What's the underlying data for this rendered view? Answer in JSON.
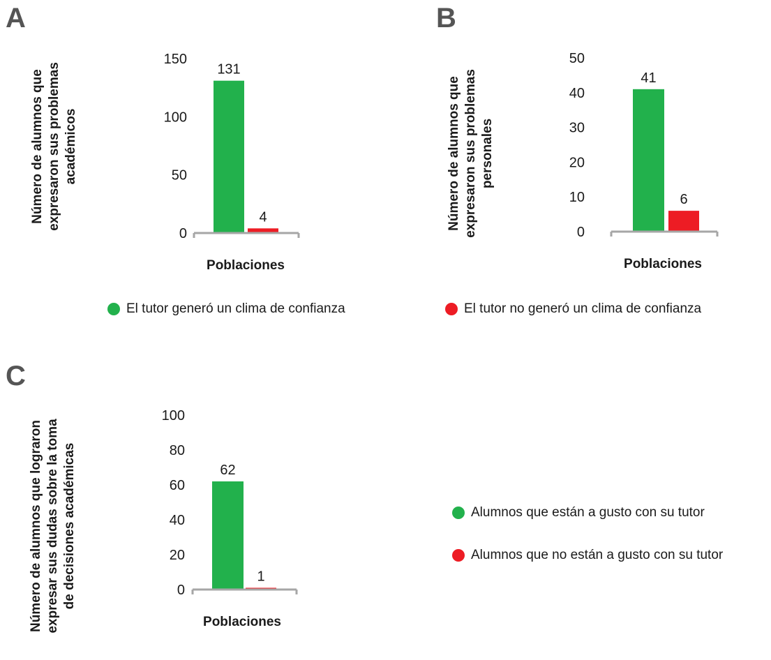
{
  "colors": {
    "green": "#22b14c",
    "red": "#ed1c24",
    "axis": "#a6a6a6"
  },
  "chart_data": [
    {
      "panel": "A",
      "type": "bar",
      "xlabel": "Poblaciones",
      "ylabel": "Número de alumnos que\nexpresaron sus problemas\nacadémicos",
      "ylim": [
        0,
        150
      ],
      "yticks": [
        0,
        50,
        100,
        150
      ],
      "series": [
        {
          "name": "El tutor generó un clima de confianza",
          "values": [
            131
          ]
        },
        {
          "name": "El tutor no generó un clima de confianza",
          "values": [
            4
          ]
        }
      ]
    },
    {
      "panel": "B",
      "type": "bar",
      "xlabel": "Poblaciones",
      "ylabel": "Número de alumnos que\nexpresaron sus problemas\npersonales",
      "ylim": [
        0,
        50
      ],
      "yticks": [
        0,
        10,
        20,
        30,
        40,
        50
      ],
      "series": [
        {
          "name": "El tutor generó un clima de confianza",
          "values": [
            41
          ]
        },
        {
          "name": "El tutor no generó un clima de confianza",
          "values": [
            6
          ]
        }
      ]
    },
    {
      "panel": "C",
      "type": "bar",
      "xlabel": "Poblaciones",
      "ylabel": "Número de alumnos que lograron\nexpresar sus dudas sobre la toma\nde decisiones académicas",
      "ylim": [
        0,
        100
      ],
      "yticks": [
        0,
        20,
        40,
        60,
        80,
        100
      ],
      "series": [
        {
          "name": "Alumnos que están a gusto con su tutor",
          "values": [
            62
          ]
        },
        {
          "name": "Alumnos que no están a gusto con su tutor",
          "values": [
            1
          ]
        }
      ]
    }
  ],
  "legends": {
    "ab": [
      {
        "label": "El tutor generó un clima de  confianza",
        "color": "#22b14c"
      },
      {
        "label": "El tutor no generó un clima de confianza",
        "color": "#ed1c24"
      }
    ],
    "c": [
      {
        "label": "Alumnos que están a gusto con su tutor",
        "color": "#22b14c"
      },
      {
        "label": "Alumnos que no están a gusto  con su tutor",
        "color": "#ed1c24"
      }
    ]
  }
}
